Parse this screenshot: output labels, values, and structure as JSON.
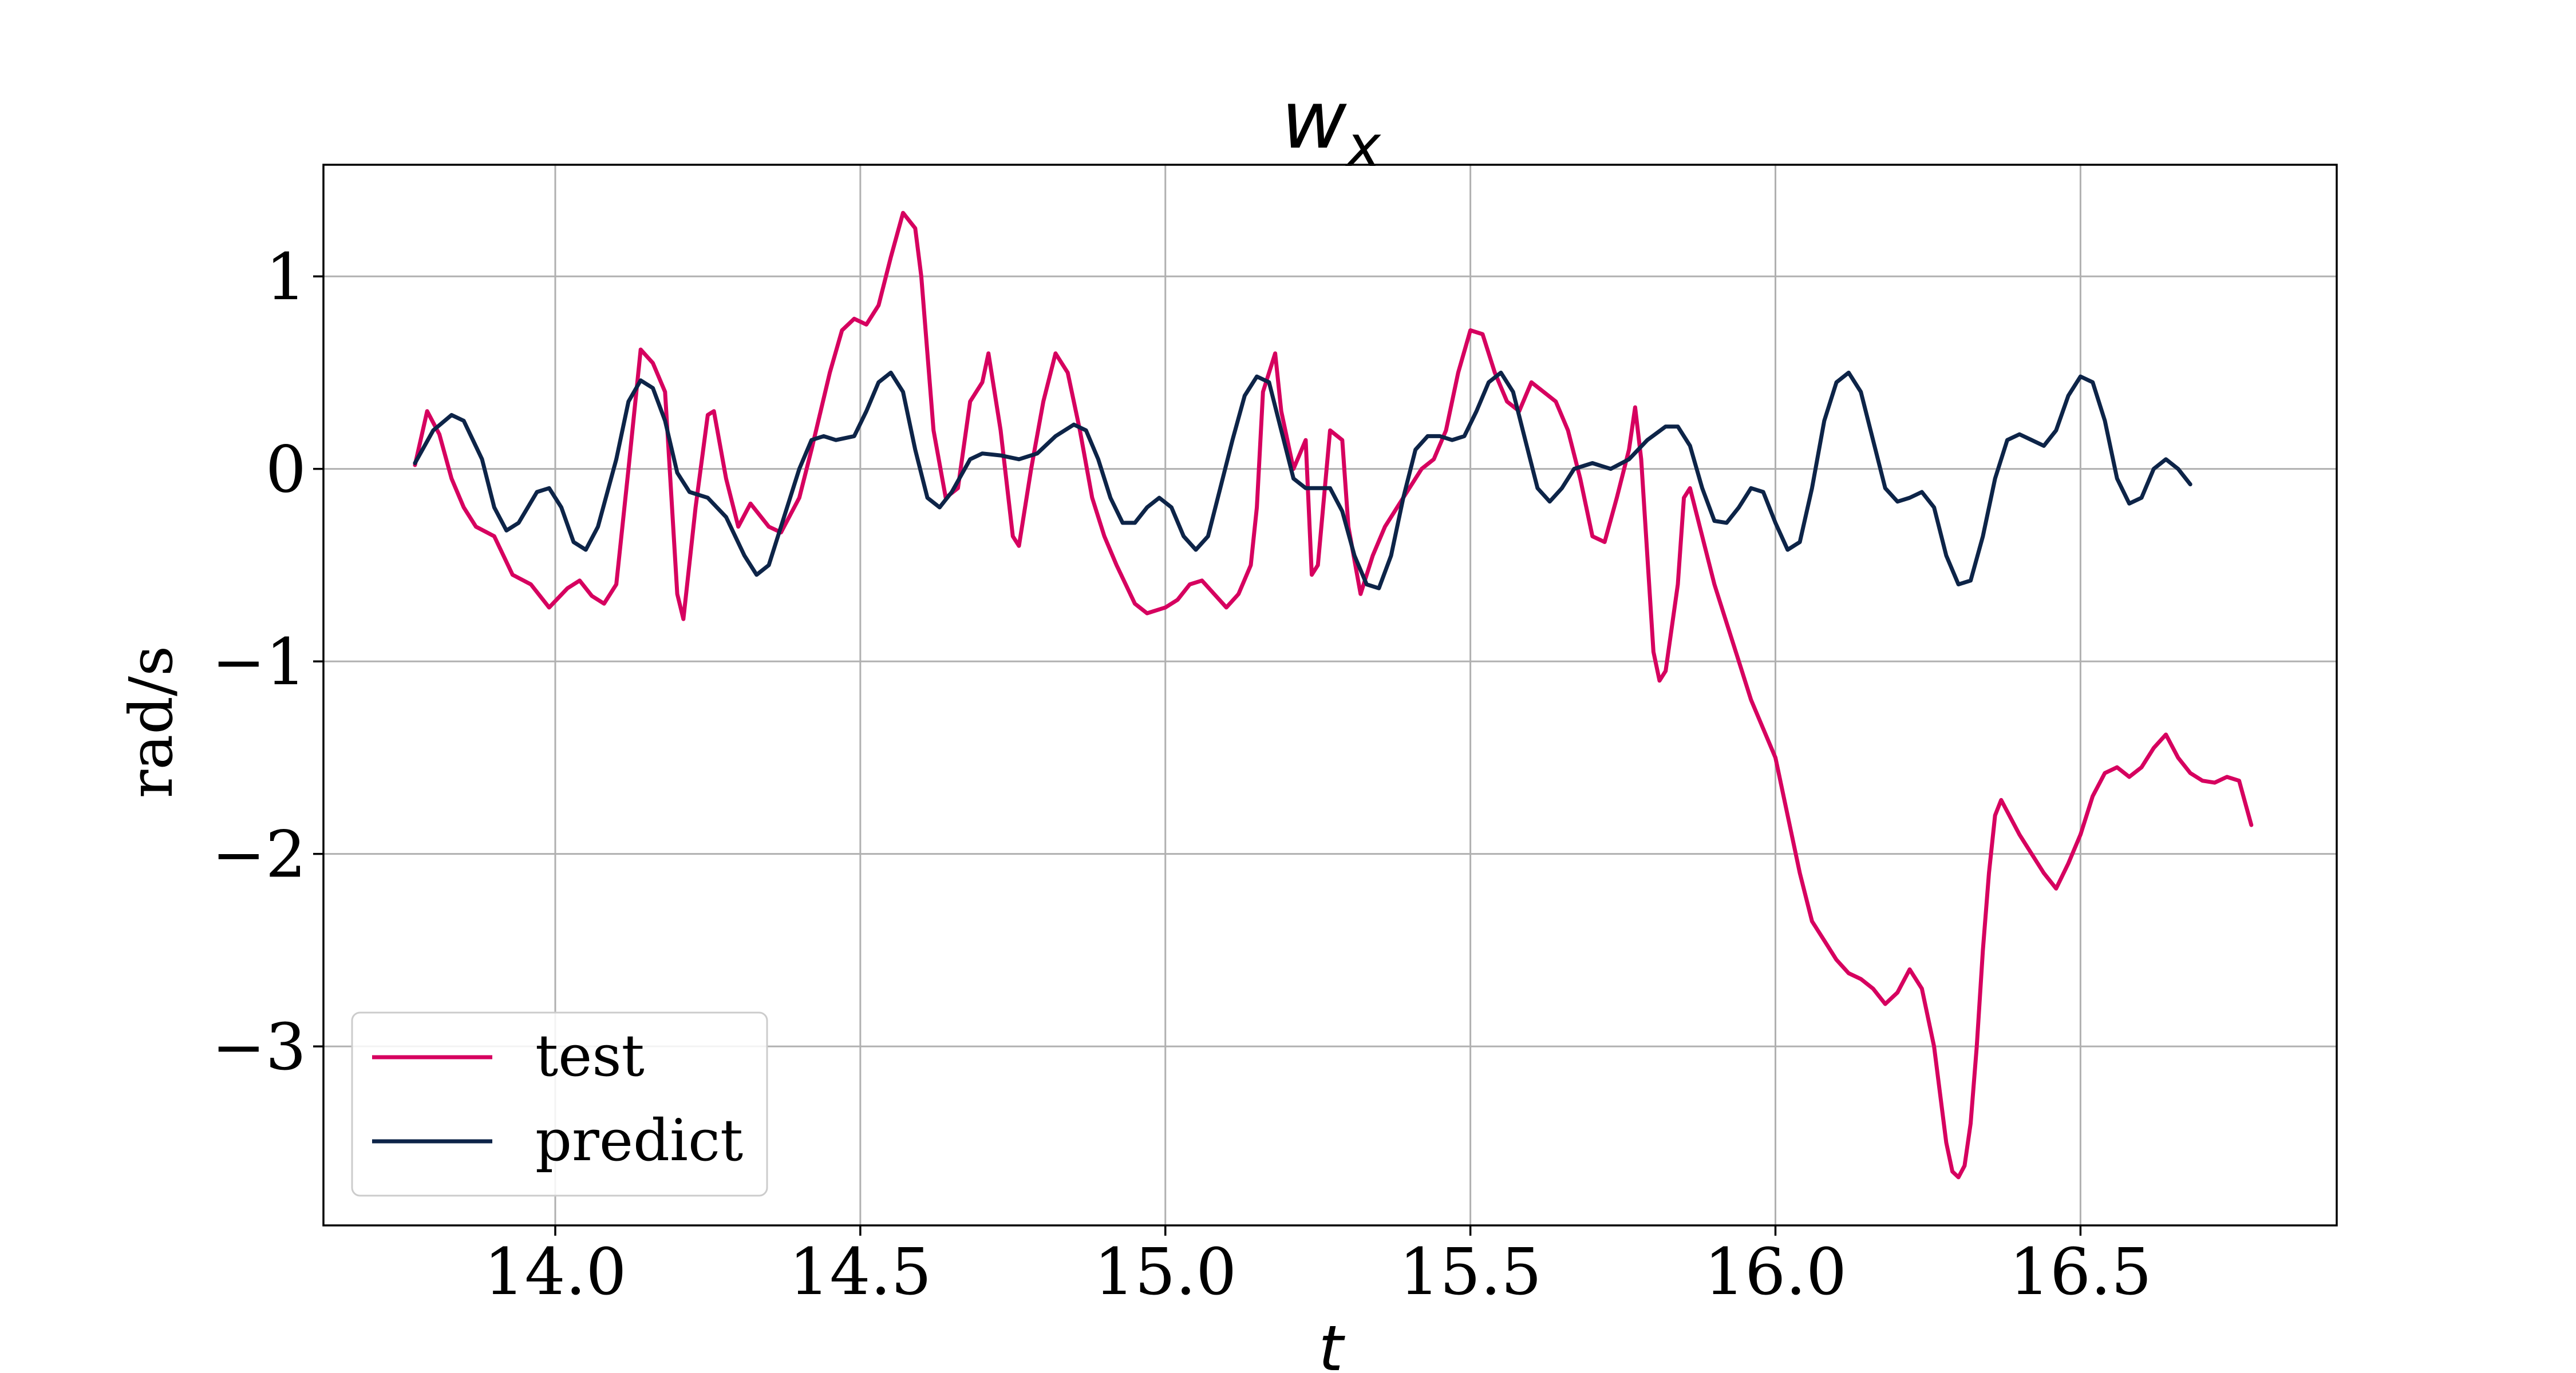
{
  "chart_data": {
    "type": "line",
    "title_main": "w",
    "title_sub": "x",
    "xlabel": "t",
    "ylabel": "rad/s",
    "xlim": [
      13.62,
      16.92
    ],
    "ylim": [
      -3.93,
      1.58
    ],
    "xticks": [
      14.0,
      14.5,
      15.0,
      15.5,
      16.0,
      16.5
    ],
    "xtick_labels": [
      "14.0",
      "14.5",
      "15.0",
      "15.5",
      "16.0",
      "16.5"
    ],
    "yticks": [
      1,
      0,
      -1,
      -2,
      -3
    ],
    "ytick_labels": [
      "1",
      "0",
      "−1",
      "−2",
      "−3"
    ],
    "grid": true,
    "legend_position": "lower-left",
    "series": [
      {
        "name": "test",
        "color": "#d6005f",
        "points": [
          [
            13.77,
            0.02
          ],
          [
            13.79,
            0.3
          ],
          [
            13.81,
            0.18
          ],
          [
            13.83,
            -0.05
          ],
          [
            13.85,
            -0.2
          ],
          [
            13.87,
            -0.3
          ],
          [
            13.9,
            -0.35
          ],
          [
            13.93,
            -0.55
          ],
          [
            13.96,
            -0.6
          ],
          [
            13.99,
            -0.72
          ],
          [
            14.02,
            -0.62
          ],
          [
            14.04,
            -0.58
          ],
          [
            14.06,
            -0.66
          ],
          [
            14.08,
            -0.7
          ],
          [
            14.1,
            -0.6
          ],
          [
            14.12,
            0.0
          ],
          [
            14.14,
            0.62
          ],
          [
            14.16,
            0.55
          ],
          [
            14.18,
            0.4
          ],
          [
            14.2,
            -0.65
          ],
          [
            14.21,
            -0.78
          ],
          [
            14.23,
            -0.2
          ],
          [
            14.25,
            0.28
          ],
          [
            14.26,
            0.3
          ],
          [
            14.28,
            -0.05
          ],
          [
            14.3,
            -0.3
          ],
          [
            14.32,
            -0.18
          ],
          [
            14.35,
            -0.3
          ],
          [
            14.37,
            -0.33
          ],
          [
            14.4,
            -0.15
          ],
          [
            14.42,
            0.1
          ],
          [
            14.45,
            0.5
          ],
          [
            14.47,
            0.72
          ],
          [
            14.49,
            0.78
          ],
          [
            14.51,
            0.75
          ],
          [
            14.53,
            0.85
          ],
          [
            14.55,
            1.1
          ],
          [
            14.57,
            1.33
          ],
          [
            14.59,
            1.25
          ],
          [
            14.6,
            1.0
          ],
          [
            14.62,
            0.2
          ],
          [
            14.64,
            -0.15
          ],
          [
            14.66,
            -0.1
          ],
          [
            14.68,
            0.35
          ],
          [
            14.7,
            0.45
          ],
          [
            14.71,
            0.6
          ],
          [
            14.73,
            0.2
          ],
          [
            14.75,
            -0.35
          ],
          [
            14.76,
            -0.4
          ],
          [
            14.78,
            0.0
          ],
          [
            14.8,
            0.35
          ],
          [
            14.82,
            0.6
          ],
          [
            14.84,
            0.5
          ],
          [
            14.86,
            0.2
          ],
          [
            14.88,
            -0.15
          ],
          [
            14.9,
            -0.35
          ],
          [
            14.92,
            -0.5
          ],
          [
            14.95,
            -0.7
          ],
          [
            14.97,
            -0.75
          ],
          [
            15.0,
            -0.72
          ],
          [
            15.02,
            -0.68
          ],
          [
            15.04,
            -0.6
          ],
          [
            15.06,
            -0.58
          ],
          [
            15.08,
            -0.65
          ],
          [
            15.1,
            -0.72
          ],
          [
            15.12,
            -0.65
          ],
          [
            15.14,
            -0.5
          ],
          [
            15.15,
            -0.2
          ],
          [
            15.16,
            0.4
          ],
          [
            15.18,
            0.6
          ],
          [
            15.19,
            0.3
          ],
          [
            15.21,
            0.0
          ],
          [
            15.23,
            0.15
          ],
          [
            15.24,
            -0.55
          ],
          [
            15.25,
            -0.5
          ],
          [
            15.27,
            0.2
          ],
          [
            15.29,
            0.15
          ],
          [
            15.3,
            -0.3
          ],
          [
            15.32,
            -0.65
          ],
          [
            15.34,
            -0.45
          ],
          [
            15.36,
            -0.3
          ],
          [
            15.38,
            -0.2
          ],
          [
            15.4,
            -0.1
          ],
          [
            15.42,
            0.0
          ],
          [
            15.44,
            0.05
          ],
          [
            15.46,
            0.2
          ],
          [
            15.48,
            0.5
          ],
          [
            15.5,
            0.72
          ],
          [
            15.52,
            0.7
          ],
          [
            15.54,
            0.5
          ],
          [
            15.56,
            0.35
          ],
          [
            15.58,
            0.3
          ],
          [
            15.6,
            0.45
          ],
          [
            15.62,
            0.4
          ],
          [
            15.64,
            0.35
          ],
          [
            15.66,
            0.2
          ],
          [
            15.68,
            -0.05
          ],
          [
            15.7,
            -0.35
          ],
          [
            15.72,
            -0.38
          ],
          [
            15.74,
            -0.15
          ],
          [
            15.76,
            0.1
          ],
          [
            15.77,
            0.32
          ],
          [
            15.78,
            0.05
          ],
          [
            15.8,
            -0.95
          ],
          [
            15.81,
            -1.1
          ],
          [
            15.82,
            -1.05
          ],
          [
            15.84,
            -0.6
          ],
          [
            15.85,
            -0.15
          ],
          [
            15.86,
            -0.1
          ],
          [
            15.88,
            -0.35
          ],
          [
            15.9,
            -0.6
          ],
          [
            15.92,
            -0.8
          ],
          [
            15.94,
            -1.0
          ],
          [
            15.96,
            -1.2
          ],
          [
            15.98,
            -1.35
          ],
          [
            16.0,
            -1.5
          ],
          [
            16.02,
            -1.8
          ],
          [
            16.04,
            -2.1
          ],
          [
            16.06,
            -2.35
          ],
          [
            16.08,
            -2.45
          ],
          [
            16.1,
            -2.55
          ],
          [
            16.12,
            -2.62
          ],
          [
            16.14,
            -2.65
          ],
          [
            16.16,
            -2.7
          ],
          [
            16.18,
            -2.78
          ],
          [
            16.2,
            -2.72
          ],
          [
            16.22,
            -2.6
          ],
          [
            16.24,
            -2.7
          ],
          [
            16.26,
            -3.0
          ],
          [
            16.28,
            -3.5
          ],
          [
            16.29,
            -3.65
          ],
          [
            16.3,
            -3.68
          ],
          [
            16.31,
            -3.62
          ],
          [
            16.32,
            -3.4
          ],
          [
            16.33,
            -3.0
          ],
          [
            16.34,
            -2.5
          ],
          [
            16.35,
            -2.1
          ],
          [
            16.36,
            -1.8
          ],
          [
            16.37,
            -1.72
          ],
          [
            16.38,
            -1.78
          ],
          [
            16.4,
            -1.9
          ],
          [
            16.42,
            -2.0
          ],
          [
            16.44,
            -2.1
          ],
          [
            16.46,
            -2.18
          ],
          [
            16.48,
            -2.05
          ],
          [
            16.5,
            -1.9
          ],
          [
            16.52,
            -1.7
          ],
          [
            16.54,
            -1.58
          ],
          [
            16.56,
            -1.55
          ],
          [
            16.58,
            -1.6
          ],
          [
            16.6,
            -1.55
          ],
          [
            16.62,
            -1.45
          ],
          [
            16.64,
            -1.38
          ],
          [
            16.66,
            -1.5
          ],
          [
            16.68,
            -1.58
          ],
          [
            16.7,
            -1.62
          ],
          [
            16.72,
            -1.63
          ],
          [
            16.74,
            -1.6
          ],
          [
            16.76,
            -1.62
          ],
          [
            16.78,
            -1.85
          ]
        ]
      },
      {
        "name": "predict",
        "color": "#0d2448",
        "points": [
          [
            13.77,
            0.03
          ],
          [
            13.8,
            0.2
          ],
          [
            13.83,
            0.28
          ],
          [
            13.85,
            0.25
          ],
          [
            13.88,
            0.05
          ],
          [
            13.9,
            -0.2
          ],
          [
            13.92,
            -0.32
          ],
          [
            13.94,
            -0.28
          ],
          [
            13.97,
            -0.12
          ],
          [
            13.99,
            -0.1
          ],
          [
            14.01,
            -0.2
          ],
          [
            14.03,
            -0.38
          ],
          [
            14.05,
            -0.42
          ],
          [
            14.07,
            -0.3
          ],
          [
            14.1,
            0.05
          ],
          [
            14.12,
            0.35
          ],
          [
            14.14,
            0.46
          ],
          [
            14.16,
            0.42
          ],
          [
            14.18,
            0.25
          ],
          [
            14.2,
            -0.02
          ],
          [
            14.22,
            -0.12
          ],
          [
            14.25,
            -0.15
          ],
          [
            14.28,
            -0.25
          ],
          [
            14.31,
            -0.45
          ],
          [
            14.33,
            -0.55
          ],
          [
            14.35,
            -0.5
          ],
          [
            14.37,
            -0.3
          ],
          [
            14.4,
            0.0
          ],
          [
            14.42,
            0.15
          ],
          [
            14.44,
            0.17
          ],
          [
            14.46,
            0.15
          ],
          [
            14.49,
            0.17
          ],
          [
            14.51,
            0.3
          ],
          [
            14.53,
            0.45
          ],
          [
            14.55,
            0.5
          ],
          [
            14.57,
            0.4
          ],
          [
            14.59,
            0.1
          ],
          [
            14.61,
            -0.15
          ],
          [
            14.63,
            -0.2
          ],
          [
            14.65,
            -0.12
          ],
          [
            14.68,
            0.05
          ],
          [
            14.7,
            0.08
          ],
          [
            14.73,
            0.07
          ],
          [
            14.76,
            0.05
          ],
          [
            14.79,
            0.08
          ],
          [
            14.82,
            0.17
          ],
          [
            14.85,
            0.23
          ],
          [
            14.87,
            0.2
          ],
          [
            14.89,
            0.05
          ],
          [
            14.91,
            -0.15
          ],
          [
            14.93,
            -0.28
          ],
          [
            14.95,
            -0.28
          ],
          [
            14.97,
            -0.2
          ],
          [
            14.99,
            -0.15
          ],
          [
            15.01,
            -0.2
          ],
          [
            15.03,
            -0.35
          ],
          [
            15.05,
            -0.42
          ],
          [
            15.07,
            -0.35
          ],
          [
            15.09,
            -0.1
          ],
          [
            15.11,
            0.15
          ],
          [
            15.13,
            0.38
          ],
          [
            15.15,
            0.48
          ],
          [
            15.17,
            0.45
          ],
          [
            15.19,
            0.2
          ],
          [
            15.21,
            -0.05
          ],
          [
            15.23,
            -0.1
          ],
          [
            15.25,
            -0.1
          ],
          [
            15.27,
            -0.1
          ],
          [
            15.29,
            -0.22
          ],
          [
            15.31,
            -0.45
          ],
          [
            15.33,
            -0.6
          ],
          [
            15.35,
            -0.62
          ],
          [
            15.37,
            -0.45
          ],
          [
            15.39,
            -0.15
          ],
          [
            15.41,
            0.1
          ],
          [
            15.43,
            0.17
          ],
          [
            15.45,
            0.17
          ],
          [
            15.47,
            0.15
          ],
          [
            15.49,
            0.17
          ],
          [
            15.51,
            0.3
          ],
          [
            15.53,
            0.45
          ],
          [
            15.55,
            0.5
          ],
          [
            15.57,
            0.4
          ],
          [
            15.59,
            0.15
          ],
          [
            15.61,
            -0.1
          ],
          [
            15.63,
            -0.17
          ],
          [
            15.65,
            -0.1
          ],
          [
            15.67,
            0.0
          ],
          [
            15.7,
            0.03
          ],
          [
            15.73,
            0.0
          ],
          [
            15.76,
            0.05
          ],
          [
            15.79,
            0.15
          ],
          [
            15.82,
            0.22
          ],
          [
            15.84,
            0.22
          ],
          [
            15.86,
            0.12
          ],
          [
            15.88,
            -0.1
          ],
          [
            15.9,
            -0.27
          ],
          [
            15.92,
            -0.28
          ],
          [
            15.94,
            -0.2
          ],
          [
            15.96,
            -0.1
          ],
          [
            15.98,
            -0.12
          ],
          [
            16.0,
            -0.28
          ],
          [
            16.02,
            -0.42
          ],
          [
            16.04,
            -0.38
          ],
          [
            16.06,
            -0.1
          ],
          [
            16.08,
            0.25
          ],
          [
            16.1,
            0.45
          ],
          [
            16.12,
            0.5
          ],
          [
            16.14,
            0.4
          ],
          [
            16.16,
            0.15
          ],
          [
            16.18,
            -0.1
          ],
          [
            16.2,
            -0.17
          ],
          [
            16.22,
            -0.15
          ],
          [
            16.24,
            -0.12
          ],
          [
            16.26,
            -0.2
          ],
          [
            16.28,
            -0.45
          ],
          [
            16.3,
            -0.6
          ],
          [
            16.32,
            -0.58
          ],
          [
            16.34,
            -0.35
          ],
          [
            16.36,
            -0.05
          ],
          [
            16.38,
            0.15
          ],
          [
            16.4,
            0.18
          ],
          [
            16.42,
            0.15
          ],
          [
            16.44,
            0.12
          ],
          [
            16.46,
            0.2
          ],
          [
            16.48,
            0.38
          ],
          [
            16.5,
            0.48
          ],
          [
            16.52,
            0.45
          ],
          [
            16.54,
            0.25
          ],
          [
            16.56,
            -0.05
          ],
          [
            16.58,
            -0.18
          ],
          [
            16.6,
            -0.15
          ],
          [
            16.62,
            0.0
          ],
          [
            16.64,
            0.05
          ],
          [
            16.66,
            0.0
          ],
          [
            16.68,
            -0.08
          ]
        ]
      }
    ]
  }
}
